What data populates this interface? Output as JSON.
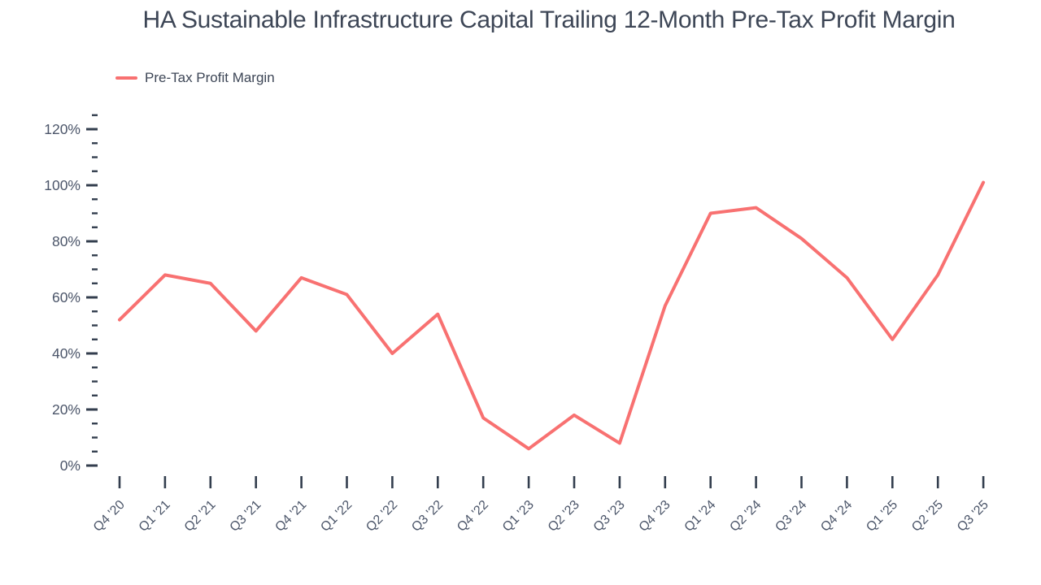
{
  "header": {
    "title": "HA Sustainable Infrastructure Capital Trailing 12-Month Pre-Tax Profit Margin"
  },
  "legend": {
    "items": [
      {
        "label": "Pre-Tax Profit Margin",
        "color": "#f87171"
      }
    ]
  },
  "colors": {
    "background": "#ffffff",
    "line": "#f87171",
    "title_text": "#3d4656",
    "axis_label_text": "#4b5569",
    "tick_mark": "#333e4e"
  },
  "chart_data": {
    "type": "line",
    "title": "HA Sustainable Infrastructure Capital Trailing 12-Month Pre-Tax Profit Margin",
    "categories": [
      "Q4 '20",
      "Q1 '21",
      "Q2 '21",
      "Q3 '21",
      "Q4 '21",
      "Q1 '22",
      "Q2 '22",
      "Q3 '22",
      "Q4 '22",
      "Q1 '23",
      "Q2 '23",
      "Q3 '23",
      "Q4 '23",
      "Q1 '24",
      "Q2 '24",
      "Q3 '24",
      "Q4 '24",
      "Q1 '25",
      "Q2 '25",
      "Q3 '25"
    ],
    "series": [
      {
        "name": "Pre-Tax Profit Margin",
        "color": "#f87171",
        "values": [
          52,
          68,
          65,
          48,
          67,
          61,
          40,
          54,
          17,
          6,
          18,
          8,
          57,
          90,
          92,
          81,
          67,
          45,
          68,
          101
        ]
      }
    ],
    "xlabel": "",
    "ylabel": "",
    "y_unit": "%",
    "ylim": [
      0,
      125
    ],
    "y_major_step": 20,
    "y_minor_step": 5,
    "y_tick_labels": [
      "0%",
      "20%",
      "40%",
      "60%",
      "80%",
      "100%",
      "120%"
    ],
    "grid": false,
    "legend_position": "top-left",
    "x_label_rotation": -45
  }
}
